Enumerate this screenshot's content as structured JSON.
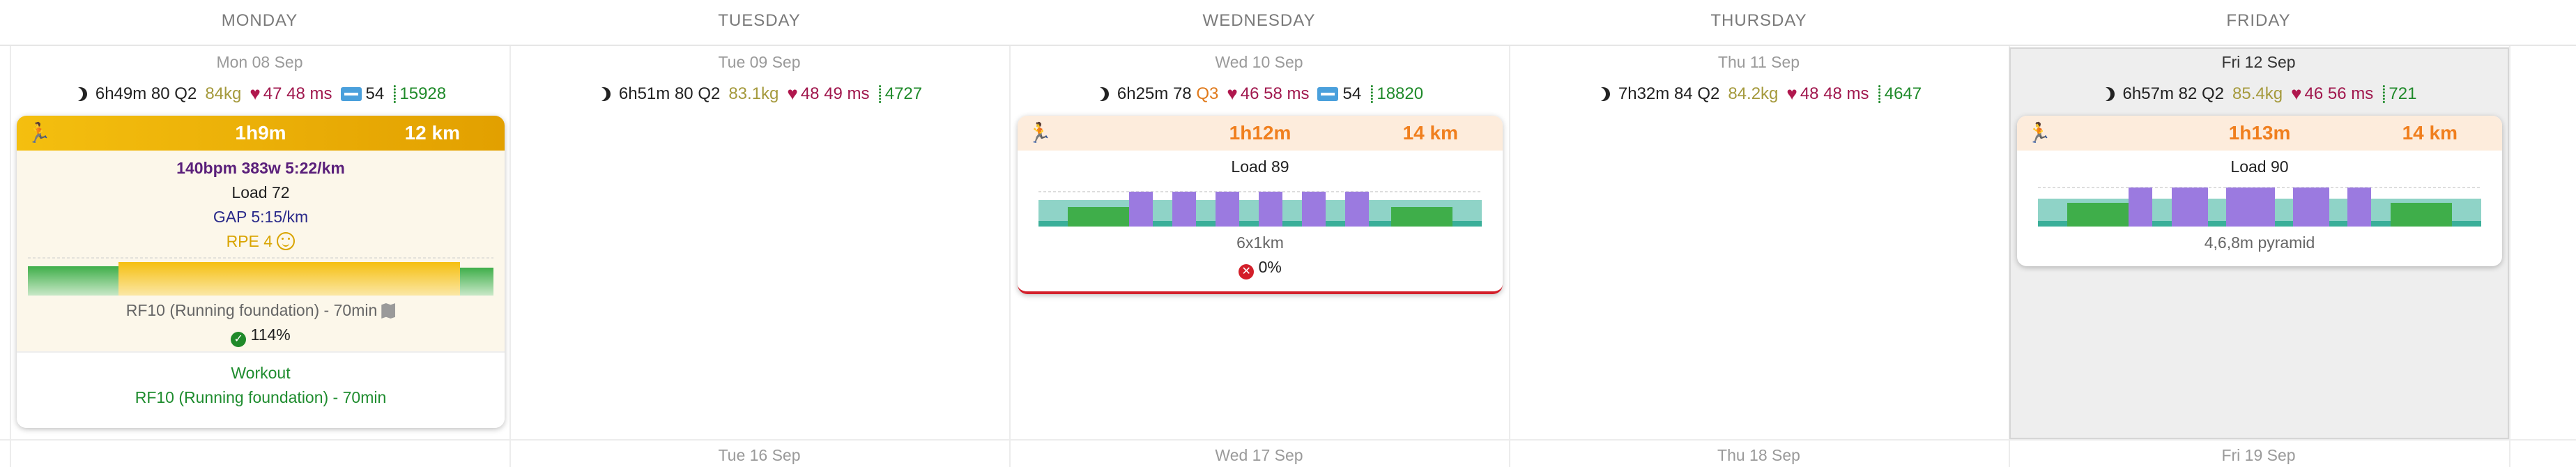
{
  "days": [
    "MONDAY",
    "TUESDAY",
    "WEDNESDAY",
    "THURSDAY",
    "FRIDAY"
  ],
  "dates": [
    "Mon 08 Sep",
    "Tue 09 Sep",
    "Wed 10 Sep",
    "Thu 11 Sep",
    "Fri 12 Sep"
  ],
  "next_dates": [
    "Tue 16 Sep",
    "Wed 17 Sep",
    "Thu 18 Sep",
    "Fri 19 Sep"
  ],
  "stats": {
    "mon": {
      "sleep": "6h49m",
      "score": "80",
      "quality": "Q2",
      "weight": "84kg",
      "hrv": "47 48 ms",
      "rest": "54",
      "steps": "15928"
    },
    "tue": {
      "sleep": "6h51m",
      "score": "80",
      "quality": "Q2",
      "weight": "83.1kg",
      "hrv": "48 49 ms",
      "steps": "4727"
    },
    "wed": {
      "sleep": "6h25m",
      "score": "78",
      "quality": "Q3",
      "weight": "",
      "hrv": "46 58 ms",
      "rest": "54",
      "steps": "18820"
    },
    "thu": {
      "sleep": "7h32m",
      "score": "84",
      "quality": "Q2",
      "weight": "84.2kg",
      "hrv": "48 48 ms",
      "steps": "4647"
    },
    "fri": {
      "sleep": "6h57m",
      "score": "82",
      "quality": "Q2",
      "weight": "85.4kg",
      "hrv": "46 56 ms",
      "steps": "721"
    }
  },
  "cards": {
    "mon": {
      "duration": "1h9m",
      "distance": "12 km",
      "metrics": "140bpm 383w 5:22/km",
      "load": "Load 72",
      "gap": "GAP 5:15/km",
      "rpe": "RPE 4",
      "name": "RF10 (Running foundation) - 70min",
      "compliance": "114%",
      "foot_title": "Workout",
      "foot_name": "RF10 (Running foundation) - 70min"
    },
    "wed": {
      "duration": "1h12m",
      "distance": "14 km",
      "load": "Load 89",
      "name": "6x1km",
      "compliance": "0%"
    },
    "fri": {
      "duration": "1h13m",
      "distance": "14 km",
      "load": "Load 90",
      "name": "4,6,8m pyramid"
    }
  },
  "icons": {
    "sleep": "moon-icon",
    "hrv": "heart-icon",
    "steps": "footsteps-icon",
    "rest": "resting-hr-icon",
    "activity": "runner-icon",
    "feel": "smiley-icon",
    "route": "map-icon",
    "done": "check-circle-icon",
    "missed": "x-circle-icon"
  },
  "colors": {
    "run_completed": "#f2b705",
    "run_planned": "#f07f1e",
    "interval": "#9b7ae0",
    "easy": "#3fae4a",
    "recovery": "#8fd3c7",
    "hrv": "#a0174d",
    "steps": "#1f8a2a",
    "missed": "#d31f2a"
  }
}
